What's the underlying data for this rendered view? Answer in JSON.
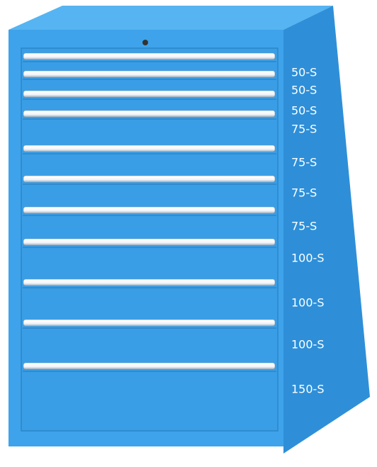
{
  "labels": [
    "50-S",
    "50-S",
    "50-S",
    "75-S",
    "75-S",
    "75-S",
    "75-S",
    "100-S",
    "100-S",
    "100-S",
    "150-S"
  ]
}
